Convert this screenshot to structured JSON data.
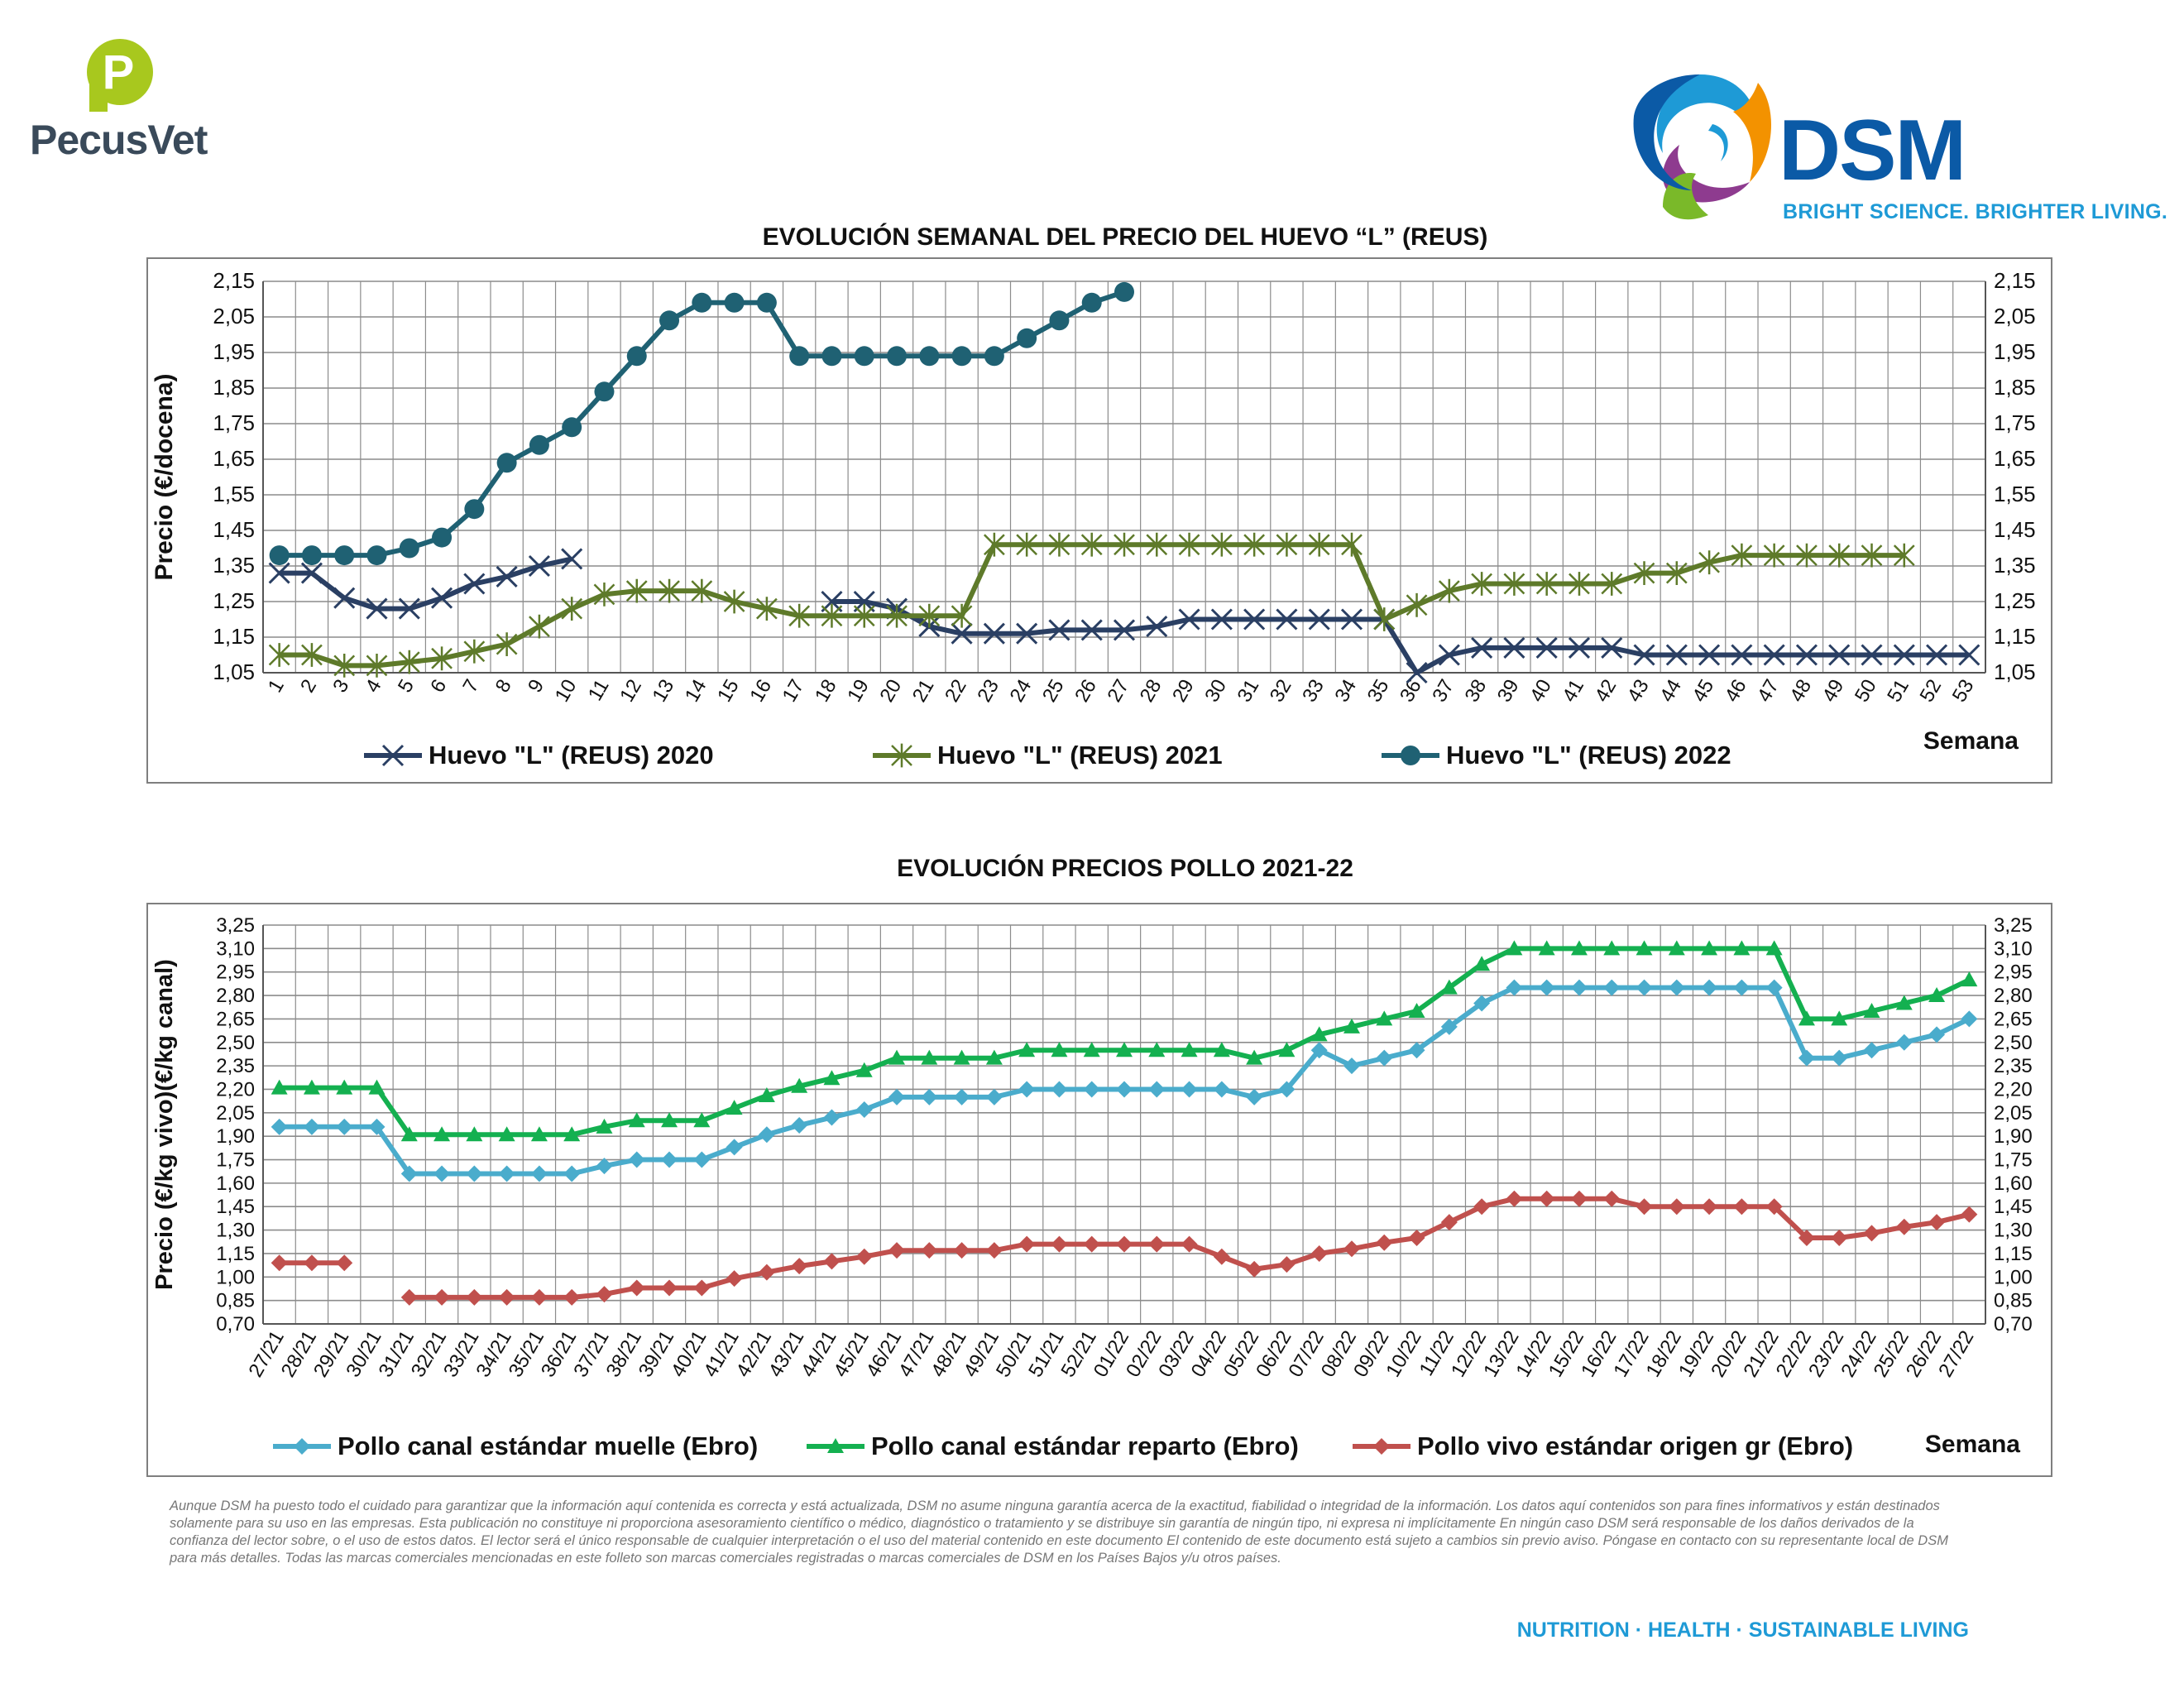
{
  "brand": {
    "pecus_name": "PecusVet",
    "pecus_mark": "P",
    "dsm_name": "DSM",
    "dsm_tagline": "BRIGHT SCIENCE. BRIGHTER LIVING."
  },
  "colors": {
    "series_2020": "#2a3f63",
    "series_2021": "#5e7a2a",
    "series_2022": "#1f6173",
    "muelle": "#4aaccc",
    "reparto": "#14b050",
    "vivo": "#c0504d",
    "grid": "#8c8c8c"
  },
  "chart_data": [
    {
      "type": "line",
      "title": "EVOLUCIÓN SEMANAL DEL PRECIO DEL HUEVO “L” (REUS)",
      "ylabel": "Precio (€/docena)",
      "xlabel": "Semana",
      "ylim": [
        1.05,
        2.15
      ],
      "yticks": [
        "2,15",
        "2,05",
        "1,95",
        "1,85",
        "1,75",
        "1,65",
        "1,55",
        "1,45",
        "1,35",
        "1,25",
        "1,15",
        "1,05"
      ],
      "secondary_axis": true,
      "grid": true,
      "legend": "bottom",
      "categories": [
        "1",
        "2",
        "3",
        "4",
        "5",
        "6",
        "7",
        "8",
        "9",
        "10",
        "11",
        "12",
        "13",
        "14",
        "15",
        "16",
        "17",
        "18",
        "19",
        "20",
        "21",
        "22",
        "23",
        "24",
        "25",
        "26",
        "27",
        "28",
        "29",
        "30",
        "31",
        "32",
        "33",
        "34",
        "35",
        "36",
        "37",
        "38",
        "39",
        "40",
        "41",
        "42",
        "43",
        "44",
        "45",
        "46",
        "47",
        "48",
        "49",
        "50",
        "51",
        "52",
        "53"
      ],
      "series": [
        {
          "name": "Huevo \"L\" (REUS) 2020",
          "marker": "x",
          "values": [
            1.33,
            1.33,
            1.26,
            1.23,
            1.23,
            1.26,
            1.3,
            1.32,
            1.35,
            1.37,
            null,
            null,
            null,
            null,
            null,
            null,
            null,
            1.25,
            1.25,
            1.23,
            1.18,
            1.16,
            1.16,
            1.16,
            1.17,
            1.17,
            1.17,
            1.18,
            1.2,
            1.2,
            1.2,
            1.2,
            1.2,
            1.2,
            1.2,
            1.05,
            1.1,
            1.12,
            1.12,
            1.12,
            1.12,
            1.12,
            1.1,
            1.1,
            1.1,
            1.1,
            1.1,
            1.1,
            1.1,
            1.1,
            1.1,
            1.1,
            1.1
          ]
        },
        {
          "name": "Huevo \"L\" (REUS) 2021",
          "marker": "star",
          "values": [
            1.1,
            1.1,
            1.07,
            1.07,
            1.08,
            1.09,
            1.11,
            1.13,
            1.18,
            1.23,
            1.27,
            1.28,
            1.28,
            1.28,
            1.25,
            1.23,
            1.21,
            1.21,
            1.21,
            1.21,
            1.21,
            1.21,
            1.41,
            1.41,
            1.41,
            1.41,
            1.41,
            1.41,
            1.41,
            1.41,
            1.41,
            1.41,
            1.41,
            1.41,
            1.2,
            1.24,
            1.28,
            1.3,
            1.3,
            1.3,
            1.3,
            1.3,
            1.33,
            1.33,
            1.36,
            1.38,
            1.38,
            1.38,
            1.38,
            1.38,
            1.38,
            null,
            null
          ]
        },
        {
          "name": "Huevo \"L\" (REUS) 2022",
          "marker": "circle",
          "values": [
            1.38,
            1.38,
            1.38,
            1.38,
            1.4,
            1.43,
            1.51,
            1.64,
            1.69,
            1.74,
            1.84,
            1.94,
            2.04,
            2.09,
            2.09,
            2.09,
            1.94,
            1.94,
            1.94,
            1.94,
            1.94,
            1.94,
            1.94,
            1.99,
            2.04,
            2.09,
            2.12,
            null,
            null,
            null,
            null,
            null,
            null,
            null,
            null,
            null,
            null,
            null,
            null,
            null,
            null,
            null,
            null,
            null,
            null,
            null,
            null,
            null,
            null,
            null,
            null,
            null,
            null
          ]
        }
      ]
    },
    {
      "type": "line",
      "title": "EVOLUCIÓN PRECIOS POLLO 2021-22",
      "ylabel": "Precio (€/kg vivo)(€/kg canal)",
      "xlabel": "Semana",
      "ylim": [
        0.7,
        3.25
      ],
      "yticks": [
        "3,25",
        "3,10",
        "2,95",
        "2,80",
        "2,65",
        "2,50",
        "2,35",
        "2,20",
        "2,05",
        "1,90",
        "1,75",
        "1,60",
        "1,45",
        "1,30",
        "1,15",
        "1,00",
        "0,85",
        "0,70"
      ],
      "secondary_axis": true,
      "grid": true,
      "legend": "bottom",
      "categories": [
        "27/21",
        "28/21",
        "29/21",
        "30/21",
        "31/21",
        "32/21",
        "33/21",
        "34/21",
        "35/21",
        "36/21",
        "37/21",
        "38/21",
        "39/21",
        "40/21",
        "41/21",
        "42/21",
        "43/21",
        "44/21",
        "45/21",
        "46/21",
        "47/21",
        "48/21",
        "49/21",
        "50/21",
        "51/21",
        "52/21",
        "01/22",
        "02/22",
        "03/22",
        "04/22",
        "05/22",
        "06/22",
        "07/22",
        "08/22",
        "09/22",
        "10/22",
        "11/22",
        "12/22",
        "13/22",
        "14/22",
        "15/22",
        "16/22",
        "17/22",
        "18/22",
        "19/22",
        "20/22",
        "21/22",
        "22/22",
        "23/22",
        "24/22",
        "25/22",
        "26/22",
        "27/22"
      ],
      "series": [
        {
          "name": "Pollo canal estándar muelle (Ebro)",
          "marker": "diamond",
          "values": [
            1.96,
            1.96,
            1.96,
            1.96,
            1.66,
            1.66,
            1.66,
            1.66,
            1.66,
            1.66,
            1.71,
            1.75,
            1.75,
            1.75,
            1.83,
            1.91,
            1.97,
            2.02,
            2.07,
            2.15,
            2.15,
            2.15,
            2.15,
            2.2,
            2.2,
            2.2,
            2.2,
            2.2,
            2.2,
            2.2,
            2.15,
            2.2,
            2.45,
            2.35,
            2.4,
            2.45,
            2.6,
            2.75,
            2.85,
            2.85,
            2.85,
            2.85,
            2.85,
            2.85,
            2.85,
            2.85,
            2.85,
            2.4,
            2.4,
            2.45,
            2.5,
            2.55,
            2.65
          ]
        },
        {
          "name": "Pollo canal estándar reparto (Ebro)",
          "marker": "triangle",
          "values": [
            2.21,
            2.21,
            2.21,
            2.21,
            1.91,
            1.91,
            1.91,
            1.91,
            1.91,
            1.91,
            1.96,
            2.0,
            2.0,
            2.0,
            2.08,
            2.16,
            2.22,
            2.27,
            2.32,
            2.4,
            2.4,
            2.4,
            2.4,
            2.45,
            2.45,
            2.45,
            2.45,
            2.45,
            2.45,
            2.45,
            2.4,
            2.45,
            2.55,
            2.6,
            2.65,
            2.7,
            2.85,
            3.0,
            3.1,
            3.1,
            3.1,
            3.1,
            3.1,
            3.1,
            3.1,
            3.1,
            3.1,
            2.65,
            2.65,
            2.7,
            2.75,
            2.8,
            2.9
          ]
        },
        {
          "name": "Pollo vivo estándar origen gr (Ebro)",
          "marker": "diamond",
          "values": [
            1.09,
            1.09,
            1.09,
            null,
            0.87,
            0.87,
            0.87,
            0.87,
            0.87,
            0.87,
            0.89,
            0.93,
            0.93,
            0.93,
            0.99,
            1.03,
            1.07,
            1.1,
            1.13,
            1.17,
            1.17,
            1.17,
            1.17,
            1.21,
            1.21,
            1.21,
            1.21,
            1.21,
            1.21,
            1.13,
            1.05,
            1.08,
            1.15,
            1.18,
            1.22,
            1.25,
            1.35,
            1.45,
            1.5,
            1.5,
            1.5,
            1.5,
            1.45,
            1.45,
            1.45,
            1.45,
            1.45,
            1.25,
            1.25,
            1.28,
            1.32,
            1.35,
            1.4
          ]
        }
      ]
    }
  ],
  "disclaimer": "Aunque DSM ha puesto todo el cuidado para garantizar que la información aquí contenida es correcta y está actualizada, DSM no asume ninguna garantía acerca de la exactitud, fiabilidad o integridad de la información. Los datos aquí contenidos son para fines informativos y están destinados solamente para su uso en las empresas. Esta publicación no constituye ni proporciona asesoramiento científico o médico, diagnóstico o tratamiento y se distribuye sin garantía de ningún tipo, ni expresa ni implícitamente En ningún caso DSM será responsable de los daños derivados de la confianza del lector sobre, o el uso de estos datos. El lector será el único responsable de cualquier interpretación o el uso del material contenido en este documento El contenido de este documento está sujeto a cambios sin previo aviso. Póngase en contacto con su representante local de DSM para más detalles. Todas las marcas comerciales mencionadas en este folleto son marcas comerciales registradas o marcas comerciales de DSM en los Países Bajos y/u otros países.",
  "footer": "NUTRITION  ·  HEALTH  ·  SUSTAINABLE LIVING"
}
